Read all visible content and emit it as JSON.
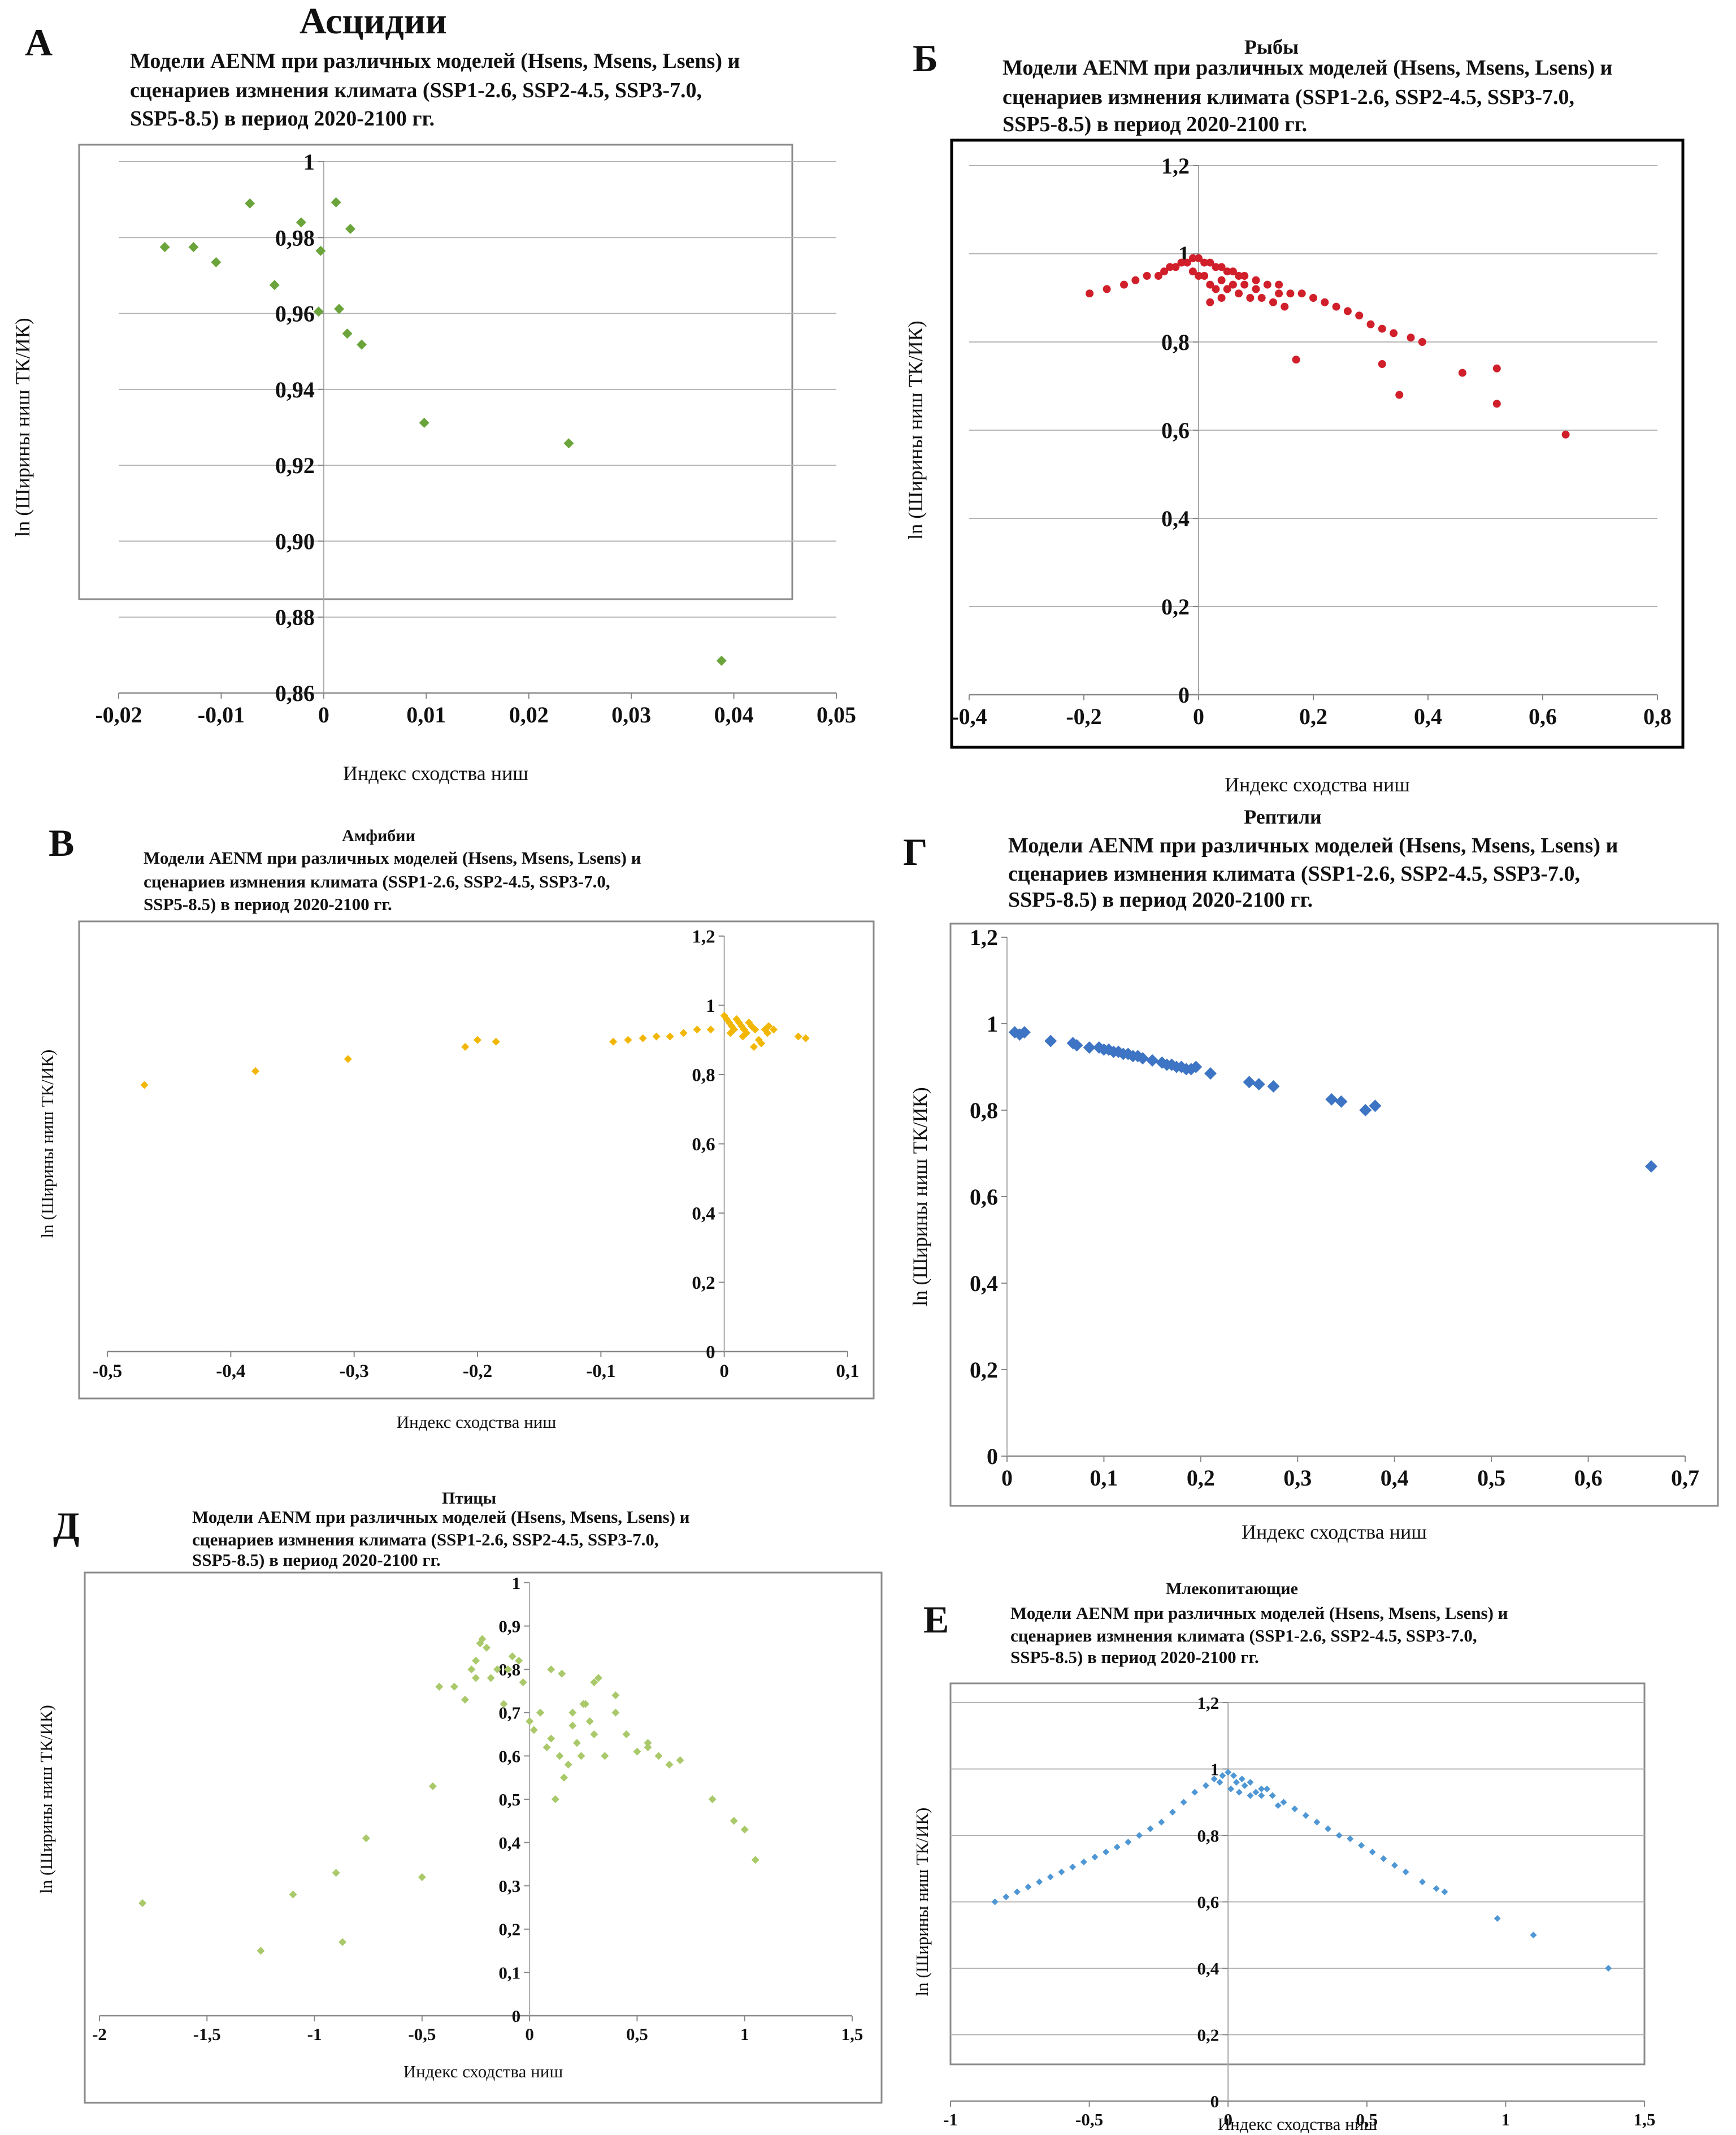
{
  "page_heading": "Асцидии",
  "chart_data": [
    {
      "panel": "А",
      "type": "scatter",
      "heading": "",
      "title_lines": [
        "Модели AENM при различных моделей (Hsens, Msens, Lsens) и",
        "сценариев измнения климата (SSP1-2.6, SSP2-4.5, SSP3-7.0,",
        "SSP5-8.5) в период 2020-2100 гг."
      ],
      "xlabel": "Индекс сходства ниш",
      "ylabel": "ln (Ширины ниш ТК/ИК)",
      "xlim": [
        -0.02,
        0.05
      ],
      "ylim": [
        0.86,
        1.0
      ],
      "xticks": [
        -0.02,
        -0.01,
        0,
        0.01,
        0.02,
        0.03,
        0.04,
        0.05
      ],
      "yticks": [
        0.86,
        0.88,
        0.9,
        0.92,
        0.94,
        0.96,
        0.98,
        1
      ],
      "decimals_x": 2,
      "decimals_y": 2,
      "grid": true,
      "frame": "thin",
      "marker": "diamond",
      "color": "#6aa43a",
      "marker_size": 9,
      "x": [
        -0.0155,
        -0.0127,
        -0.0105,
        -0.0072,
        -0.0048,
        -0.0022,
        -0.0003,
        0.0012,
        0.0015,
        0.0023,
        0.0026,
        0.0037,
        0.0098,
        0.0239,
        0.0388,
        -0.0005
      ],
      "y": [
        0.9775,
        0.9775,
        0.9735,
        0.989,
        0.9675,
        0.984,
        0.9765,
        0.9893,
        0.9612,
        0.9547,
        0.9823,
        0.9518,
        0.9312,
        0.9258,
        0.8685,
        0.9605
      ]
    },
    {
      "panel": "Б",
      "type": "scatter",
      "heading": "Рыбы",
      "title_lines": [
        "Модели AENM при различных моделей (Hsens, Msens, Lsens) и",
        "сценариев измнения климата (SSP1-2.6, SSP2-4.5, SSP3-7.0,",
        "SSP5-8.5) в период 2020-2100 гг."
      ],
      "xlabel": "Индекс сходства ниш",
      "ylabel": "ln (Ширины ниш ТК/ИК)",
      "xlim": [
        -0.4,
        0.8
      ],
      "ylim": [
        0,
        1.2
      ],
      "xticks": [
        -0.4,
        -0.2,
        0,
        0.2,
        0.4,
        0.6,
        0.8
      ],
      "yticks": [
        0,
        0.2,
        0.4,
        0.6,
        0.8,
        1,
        1.2
      ],
      "decimals_x": 1,
      "decimals_y": 1,
      "grid": true,
      "frame": "thick",
      "marker": "circle",
      "color": "#d01f2a",
      "marker_size": 7,
      "x": [
        -0.19,
        -0.16,
        -0.13,
        -0.11,
        -0.09,
        -0.07,
        -0.06,
        -0.05,
        -0.04,
        -0.03,
        -0.02,
        -0.01,
        0,
        0.01,
        0.02,
        0.03,
        0.04,
        0.05,
        0.06,
        0.07,
        0.08,
        0.1,
        0.12,
        0.14,
        0.16,
        0.18,
        0.2,
        0.22,
        0.24,
        0.26,
        0.28,
        0.3,
        0.32,
        0.34,
        0.37,
        0.39,
        0.02,
        0.03,
        0.05,
        0.07,
        0.09,
        0.11,
        0.13,
        0.15,
        0.01,
        0.04,
        0.06,
        0.08,
        0.1,
        0.14,
        0.17,
        0.32,
        0.35,
        0.46,
        0.52,
        0.52,
        0.64,
        -0.01,
        0.0,
        0.02,
        0.04
      ],
      "y": [
        0.91,
        0.92,
        0.93,
        0.94,
        0.95,
        0.95,
        0.96,
        0.97,
        0.97,
        0.98,
        0.98,
        0.99,
        0.99,
        0.98,
        0.98,
        0.97,
        0.97,
        0.96,
        0.96,
        0.95,
        0.95,
        0.94,
        0.93,
        0.93,
        0.91,
        0.91,
        0.9,
        0.89,
        0.88,
        0.87,
        0.86,
        0.84,
        0.83,
        0.82,
        0.81,
        0.8,
        0.93,
        0.92,
        0.92,
        0.91,
        0.9,
        0.9,
        0.89,
        0.88,
        0.95,
        0.94,
        0.93,
        0.93,
        0.92,
        0.91,
        0.76,
        0.75,
        0.68,
        0.73,
        0.74,
        0.66,
        0.59,
        0.96,
        0.95,
        0.89,
        0.9
      ]
    },
    {
      "panel": "В",
      "type": "scatter",
      "heading": "Амфибии",
      "title_lines": [
        "Модели AENM при различных моделей (Hsens, Msens, Lsens) и",
        "сценариев измнения климата (SSP1-2.6, SSP2-4.5, SSP3-7.0,",
        "SSP5-8.5) в период 2020-2100 гг."
      ],
      "xlabel": "Индекс сходства ниш",
      "ylabel": "ln (Ширины ниш ТК/ИК)",
      "xlim": [
        -0.5,
        0.1
      ],
      "ylim": [
        0,
        1.2
      ],
      "xticks": [
        -0.5,
        -0.4,
        -0.3,
        -0.2,
        -0.1,
        0,
        0.1
      ],
      "yticks": [
        0,
        0.2,
        0.4,
        0.6,
        0.8,
        1,
        1.2
      ],
      "decimals_x": 1,
      "decimals_y": 1,
      "grid": false,
      "frame": "thin",
      "marker": "diamond",
      "color": "#f2b705",
      "marker_size": 7,
      "x": [
        -0.47,
        -0.38,
        -0.305,
        -0.21,
        -0.2,
        -0.185,
        -0.09,
        -0.078,
        -0.066,
        -0.055,
        -0.044,
        -0.033,
        -0.022,
        -0.011,
        0.0,
        0.002,
        0.004,
        0.006,
        0.008,
        0.01,
        0.012,
        0.014,
        0.016,
        0.018,
        0.02,
        0.022,
        0.025,
        0.028,
        0.03,
        0.033,
        0.036,
        0.04,
        0.06,
        0.066,
        0.005,
        0.015,
        0.024,
        0.035,
        0.02
      ],
      "y": [
        0.77,
        0.81,
        0.845,
        0.88,
        0.9,
        0.895,
        0.895,
        0.9,
        0.905,
        0.91,
        0.91,
        0.92,
        0.93,
        0.93,
        0.97,
        0.96,
        0.95,
        0.94,
        0.93,
        0.96,
        0.95,
        0.94,
        0.93,
        0.92,
        0.95,
        0.94,
        0.93,
        0.9,
        0.89,
        0.93,
        0.94,
        0.93,
        0.91,
        0.905,
        0.92,
        0.91,
        0.88,
        0.92,
        0.95
      ]
    },
    {
      "panel": "Г",
      "type": "scatter",
      "heading": "Рептили",
      "title_lines": [
        "Модели AENM при различных моделей (Hsens, Msens, Lsens) и",
        "сценариев измнения климата (SSP1-2.6, SSP2-4.5, SSP3-7.0,",
        "SSP5-8.5) в период 2020-2100 гг."
      ],
      "xlabel": "Индекс сходства ниш",
      "ylabel": "ln (Ширины ниш ТК/ИК)",
      "xlim": [
        0,
        0.7
      ],
      "ylim": [
        0,
        1.2
      ],
      "xticks": [
        0,
        0.1,
        0.2,
        0.3,
        0.4,
        0.5,
        0.6,
        0.7
      ],
      "yticks": [
        0,
        0.2,
        0.4,
        0.6,
        0.8,
        1,
        1.2
      ],
      "decimals_x": 1,
      "decimals_y": 1,
      "grid": false,
      "frame": "thin",
      "marker": "diamond",
      "color": "#3d74c4",
      "marker_size": 11,
      "x": [
        0.008,
        0.013,
        0.018,
        0.045,
        0.068,
        0.072,
        0.085,
        0.095,
        0.1,
        0.105,
        0.11,
        0.115,
        0.12,
        0.125,
        0.13,
        0.135,
        0.14,
        0.15,
        0.16,
        0.165,
        0.17,
        0.175,
        0.18,
        0.185,
        0.19,
        0.195,
        0.21,
        0.25,
        0.26,
        0.275,
        0.335,
        0.345,
        0.37,
        0.38,
        0.665
      ],
      "y": [
        0.98,
        0.975,
        0.98,
        0.96,
        0.955,
        0.95,
        0.945,
        0.945,
        0.94,
        0.94,
        0.935,
        0.935,
        0.93,
        0.93,
        0.925,
        0.925,
        0.92,
        0.915,
        0.91,
        0.905,
        0.905,
        0.9,
        0.9,
        0.895,
        0.895,
        0.9,
        0.885,
        0.865,
        0.86,
        0.855,
        0.825,
        0.82,
        0.8,
        0.81,
        0.67
      ]
    },
    {
      "panel": "Д",
      "type": "scatter",
      "heading": "Птицы",
      "title_lines": [
        "Модели AENM при различных моделей (Hsens, Msens, Lsens) и",
        "сценариев измнения климата (SSP1-2.6, SSP2-4.5, SSP3-7.0,",
        "SSP5-8.5) в период 2020-2100 гг."
      ],
      "xlabel": "Индекс сходства ниш",
      "ylabel": "ln (Ширины ниш ТК/ИК)",
      "xlim": [
        -2,
        1.5
      ],
      "ylim": [
        0,
        1
      ],
      "xticks": [
        -2,
        -1.5,
        -1,
        -0.5,
        0,
        0.5,
        1,
        1.5
      ],
      "yticks": [
        0,
        0.1,
        0.2,
        0.3,
        0.4,
        0.5,
        0.6,
        0.7,
        0.8,
        0.9,
        1
      ],
      "decimals_x": -1,
      "decimals_y": -1,
      "grid": false,
      "frame": "thin",
      "marker": "diamond",
      "color": "#a9c96a",
      "marker_size": 7,
      "x": [
        -1.8,
        -1.25,
        -1.1,
        -0.9,
        -0.87,
        -0.76,
        -0.5,
        -0.45,
        -0.42,
        -0.35,
        -0.3,
        -0.27,
        -0.25,
        -0.23,
        -0.2,
        -0.18,
        -0.15,
        -0.12,
        -0.1,
        -0.08,
        -0.05,
        -0.03,
        0.0,
        0.02,
        0.05,
        0.08,
        0.1,
        0.12,
        0.14,
        0.16,
        0.18,
        0.2,
        0.22,
        0.24,
        0.26,
        0.28,
        0.3,
        0.32,
        0.35,
        0.4,
        0.45,
        0.5,
        0.55,
        0.6,
        0.65,
        0.7,
        0.85,
        0.95,
        1.0,
        1.05,
        0.15,
        0.25,
        0.3,
        0.2,
        0.1,
        0.05,
        -0.22,
        -0.25,
        0.4,
        0.55
      ],
      "y": [
        0.26,
        0.15,
        0.28,
        0.33,
        0.17,
        0.41,
        0.32,
        0.53,
        0.76,
        0.76,
        0.73,
        0.8,
        0.82,
        0.86,
        0.85,
        0.78,
        0.8,
        0.72,
        0.8,
        0.83,
        0.82,
        0.77,
        0.68,
        0.66,
        0.7,
        0.62,
        0.8,
        0.5,
        0.6,
        0.55,
        0.58,
        0.7,
        0.63,
        0.6,
        0.72,
        0.68,
        0.65,
        0.78,
        0.6,
        0.7,
        0.65,
        0.61,
        0.62,
        0.6,
        0.58,
        0.59,
        0.5,
        0.45,
        0.43,
        0.36,
        0.79,
        0.72,
        0.77,
        0.67,
        0.64,
        0.7,
        0.87,
        0.78,
        0.74,
        0.63
      ]
    },
    {
      "panel": "Е",
      "type": "scatter",
      "heading": "Млекопитающие",
      "title_lines": [
        "Модели AENM при различных моделей (Hsens, Msens, Lsens) и",
        "сценариев измнения климата (SSP1-2.6, SSP2-4.5, SSP3-7.0,",
        "SSP5-8.5) в период 2020-2100 гг."
      ],
      "xlabel": "Индекс сходства ниш",
      "ylabel": "ln (Ширины ниш ТК/ИК)",
      "xlim": [
        -1,
        1.5
      ],
      "ylim": [
        0,
        1.2
      ],
      "xticks": [
        -1,
        -0.5,
        0,
        0.5,
        1,
        1.5
      ],
      "yticks": [
        0,
        0.2,
        0.4,
        0.6,
        0.8,
        1,
        1.2
      ],
      "decimals_x": -1,
      "decimals_y": 1,
      "grid": true,
      "frame": "thin",
      "marker": "diamond",
      "color": "#4f97d4",
      "marker_size": 6,
      "x": [
        -0.84,
        -0.8,
        -0.76,
        -0.72,
        -0.68,
        -0.64,
        -0.6,
        -0.56,
        -0.52,
        -0.48,
        -0.44,
        -0.4,
        -0.36,
        -0.32,
        -0.28,
        -0.24,
        -0.2,
        -0.16,
        -0.12,
        -0.08,
        -0.05,
        -0.02,
        0.0,
        0.02,
        0.05,
        0.08,
        0.12,
        0.16,
        0.2,
        0.24,
        0.28,
        0.32,
        0.36,
        0.4,
        0.44,
        0.48,
        0.52,
        0.56,
        0.6,
        0.64,
        0.7,
        0.75,
        0.78,
        0.97,
        1.1,
        1.37,
        0.03,
        0.06,
        0.1,
        0.14,
        0.04,
        0.08,
        -0.03,
        0.01,
        0.12,
        0.18
      ],
      "y": [
        0.6,
        0.615,
        0.63,
        0.645,
        0.66,
        0.675,
        0.69,
        0.705,
        0.72,
        0.735,
        0.75,
        0.765,
        0.78,
        0.8,
        0.82,
        0.84,
        0.87,
        0.9,
        0.93,
        0.95,
        0.97,
        0.98,
        0.99,
        0.98,
        0.97,
        0.96,
        0.94,
        0.92,
        0.9,
        0.88,
        0.86,
        0.84,
        0.82,
        0.8,
        0.79,
        0.77,
        0.75,
        0.73,
        0.71,
        0.69,
        0.66,
        0.64,
        0.63,
        0.55,
        0.5,
        0.4,
        0.96,
        0.95,
        0.93,
        0.94,
        0.93,
        0.92,
        0.96,
        0.94,
        0.92,
        0.89
      ]
    }
  ]
}
